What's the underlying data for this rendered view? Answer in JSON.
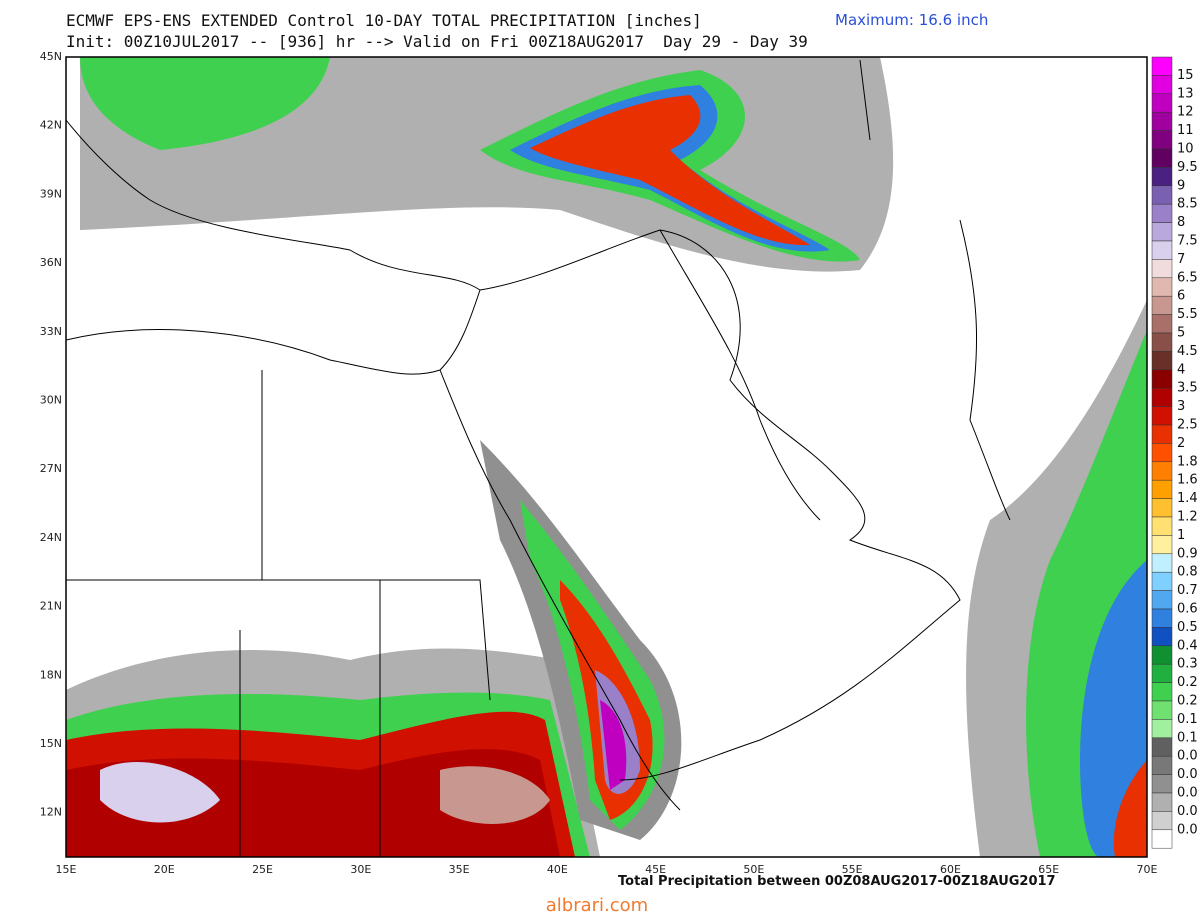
{
  "header": {
    "title": "ECMWF EPS-ENS EXTENDED Control 10-DAY TOTAL PRECIPITATION [inches]",
    "maximum": "Maximum: 16.6 inch",
    "subtitle": "Init: 00Z10JUL2017 -- [936] hr --> Valid on Fri 00Z18AUG2017  Day 29 - Day 39"
  },
  "map": {
    "lat_labels": [
      "45N",
      "42N",
      "39N",
      "36N",
      "33N",
      "30N",
      "27N",
      "24N",
      "21N",
      "18N",
      "15N",
      "12N"
    ],
    "lon_labels": [
      "15E",
      "20E",
      "25E",
      "30E",
      "35E",
      "40E",
      "45E",
      "50E",
      "55E",
      "60E",
      "65E",
      "70E"
    ]
  },
  "colorbar": {
    "labels": [
      "15",
      "13",
      "12",
      "11",
      "10",
      "9.5",
      "9",
      "8.5",
      "8",
      "7.5",
      "7",
      "6.5",
      "6",
      "5.5",
      "5",
      "4.5",
      "4",
      "3.5",
      "3",
      "2.5",
      "2",
      "1.8",
      "1.6",
      "1.4",
      "1.2",
      "1",
      "0.9",
      "0.8",
      "0.7",
      "0.6",
      "0.5",
      "0.4",
      "0.3",
      "0.2",
      "0.2",
      "0.1",
      "0.1",
      "0.0",
      "0.0",
      "0.0",
      "0.0",
      "0.0"
    ],
    "colors": [
      "#ff00ff",
      "#e000e0",
      "#c000c0",
      "#a000a0",
      "#800080",
      "#600060",
      "#4a2080",
      "#7a60b0",
      "#9a80c8",
      "#b8a8dc",
      "#d8d0ec",
      "#f0dcdc",
      "#e0b8b0",
      "#c89890",
      "#a87068",
      "#885048",
      "#683028",
      "#8a0000",
      "#b00000",
      "#d01000",
      "#e83000",
      "#ff5000",
      "#ff8000",
      "#ffa000",
      "#ffc030",
      "#ffe070",
      "#fff0a0",
      "#c0f0ff",
      "#80d0ff",
      "#50a8f0",
      "#3080e0",
      "#1050c0",
      "#109030",
      "#20b040",
      "#40d050",
      "#70e070",
      "#a0f0a0",
      "#606060",
      "#787878",
      "#909090",
      "#b0b0b0",
      "#d0d0d0",
      "#ffffff"
    ]
  },
  "footer": "Total Precipitation between 00Z08AUG2017-00Z18AUG2017",
  "watermark": "albrari.com"
}
